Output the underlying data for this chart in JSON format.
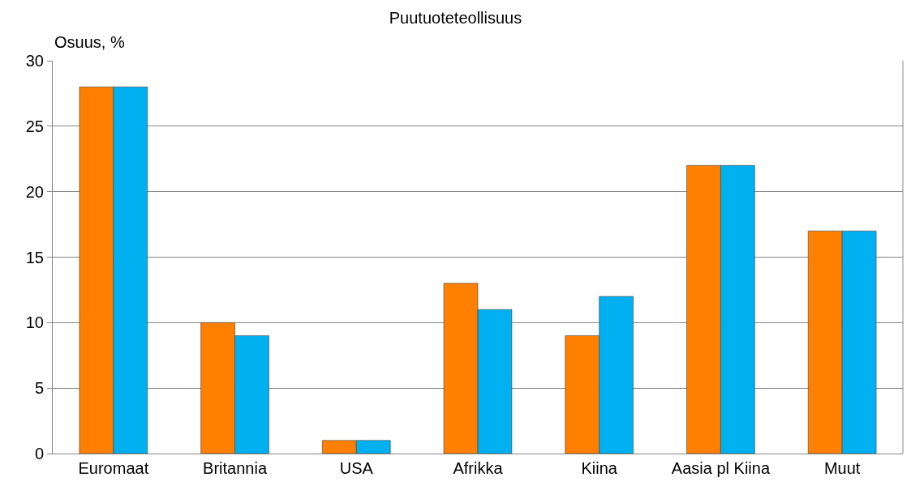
{
  "chart_data": {
    "type": "bar",
    "title": "Puutuoteteollisuus",
    "ylabel": "Osuus, %",
    "categories": [
      "Euromaat",
      "Britannia",
      "USA",
      "Afrikka",
      "Kiina",
      "Aasia pl Kiina",
      "Muut"
    ],
    "series": [
      {
        "color": "#ff8000",
        "values": [
          28,
          10,
          1,
          13,
          9,
          22,
          17
        ]
      },
      {
        "color": "#00b0f0",
        "values": [
          28,
          9,
          1,
          11,
          12,
          22,
          17
        ]
      }
    ],
    "ylim": [
      0,
      30
    ],
    "yticks": [
      0,
      5,
      10,
      15,
      20,
      25,
      30
    ],
    "grid": "y"
  }
}
